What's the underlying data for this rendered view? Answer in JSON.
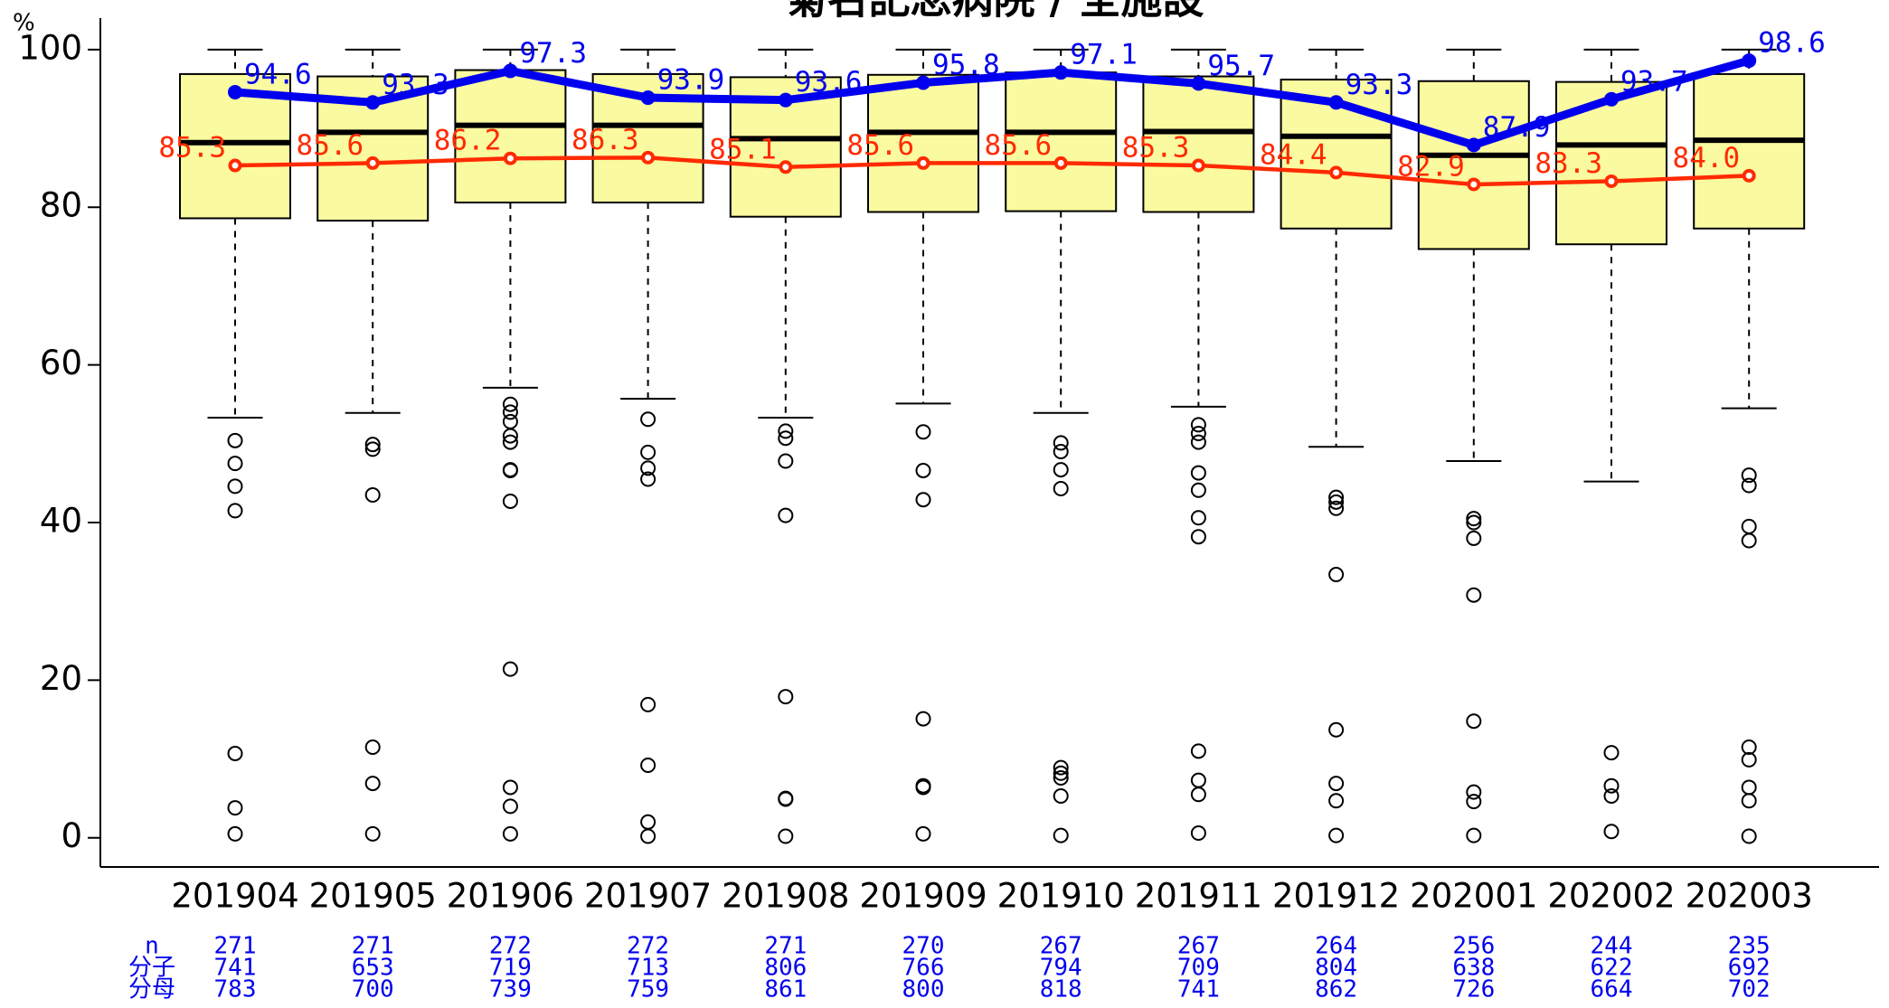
{
  "chart_data": {
    "type": "box",
    "title": "菊名記念病院 / 全施設",
    "y_label": "%",
    "ylim": [
      -3.7,
      104
    ],
    "yticks": [
      0,
      20,
      40,
      60,
      80,
      100
    ],
    "box_color": "#fafaa0",
    "categories": [
      "201904",
      "201905",
      "201906",
      "201907",
      "201908",
      "201909",
      "201910",
      "201911",
      "201912",
      "202001",
      "202002",
      "202003"
    ],
    "boxes": [
      {
        "whisker_high": 100,
        "q3": 96.9,
        "median": 88.2,
        "q1": 78.6,
        "whisker_low": 53.3,
        "outliers": [
          50.4,
          47.5,
          44.6,
          41.5,
          10.7,
          3.8,
          0.5
        ]
      },
      {
        "whisker_high": 100,
        "q3": 96.6,
        "median": 89.5,
        "q1": 78.3,
        "whisker_low": 53.9,
        "outliers": [
          49.9,
          49.3,
          43.5,
          11.5,
          6.9,
          0.5
        ]
      },
      {
        "whisker_high": 100,
        "q3": 97.4,
        "median": 90.4,
        "q1": 80.6,
        "whisker_low": 57.1,
        "outliers": [
          55.0,
          54.0,
          52.8,
          51.0,
          50.2,
          46.7,
          46.6,
          42.7,
          21.4,
          6.4,
          4.0,
          0.5
        ]
      },
      {
        "whisker_high": 100,
        "q3": 96.9,
        "median": 90.4,
        "q1": 80.6,
        "whisker_low": 55.7,
        "outliers": [
          53.1,
          48.9,
          46.9,
          45.5,
          16.9,
          9.2,
          2.0,
          0.2
        ]
      },
      {
        "whisker_high": 100,
        "q3": 96.5,
        "median": 88.7,
        "q1": 78.8,
        "whisker_low": 53.3,
        "outliers": [
          51.6,
          50.7,
          47.8,
          40.9,
          17.9,
          5.0,
          4.9,
          0.2
        ]
      },
      {
        "whisker_high": 100,
        "q3": 96.8,
        "median": 89.5,
        "q1": 79.4,
        "whisker_low": 55.1,
        "outliers": [
          51.5,
          46.6,
          42.9,
          15.1,
          6.6,
          6.4,
          0.5
        ]
      },
      {
        "whisker_high": 100,
        "q3": 97.1,
        "median": 89.5,
        "q1": 79.5,
        "whisker_low": 53.9,
        "outliers": [
          50.1,
          49.0,
          46.7,
          44.3,
          8.9,
          8.2,
          7.6,
          5.3,
          0.3
        ]
      },
      {
        "whisker_high": 100,
        "q3": 96.6,
        "median": 89.6,
        "q1": 79.4,
        "whisker_low": 54.7,
        "outliers": [
          52.4,
          51.3,
          50.2,
          46.3,
          44.1,
          40.6,
          38.2,
          11.0,
          7.3,
          5.5,
          0.6
        ]
      },
      {
        "whisker_high": 100,
        "q3": 96.2,
        "median": 89.0,
        "q1": 77.3,
        "whisker_low": 49.6,
        "outliers": [
          43.2,
          42.6,
          41.8,
          33.4,
          13.7,
          6.9,
          4.7,
          0.3
        ]
      },
      {
        "whisker_high": 100,
        "q3": 96.0,
        "median": 86.6,
        "q1": 74.7,
        "whisker_low": 47.8,
        "outliers": [
          40.5,
          40.0,
          38.0,
          30.8,
          14.8,
          5.8,
          4.6,
          0.3
        ]
      },
      {
        "whisker_high": 100,
        "q3": 95.9,
        "median": 87.9,
        "q1": 75.3,
        "whisker_low": 45.2,
        "outliers": [
          10.8,
          6.6,
          5.3,
          0.8
        ]
      },
      {
        "whisker_high": 100,
        "q3": 96.9,
        "median": 88.5,
        "q1": 77.3,
        "whisker_low": 54.5,
        "outliers": [
          46.0,
          44.7,
          39.5,
          37.7,
          11.5,
          9.9,
          6.4,
          4.7,
          0.2
        ]
      }
    ],
    "series": [
      {
        "color": "#0000ee",
        "values": [
          94.6,
          93.3,
          97.3,
          93.9,
          93.6,
          95.8,
          97.1,
          95.7,
          93.3,
          87.9,
          93.7,
          98.6
        ],
        "value_labels": [
          "94.6",
          "93.3",
          "97.3",
          "93.9",
          "93.6",
          "95.8",
          "97.1",
          "95.7",
          "93.3",
          "87.9",
          "93.7",
          "98.6"
        ]
      },
      {
        "color": "#ff2a00",
        "values": [
          85.3,
          85.6,
          86.2,
          86.3,
          85.1,
          85.6,
          85.6,
          85.3,
          84.4,
          82.9,
          83.3,
          84.0
        ],
        "value_labels": [
          "85.3",
          "85.6",
          "86.2",
          "86.3",
          "85.1",
          "85.6",
          "85.6",
          "85.3",
          "84.4",
          "82.9",
          "83.3",
          "84.0"
        ]
      }
    ],
    "table": {
      "row_labels": [
        "n",
        "分子",
        "分母"
      ],
      "rows": [
        [
          271,
          271,
          272,
          272,
          271,
          270,
          267,
          267,
          264,
          256,
          244,
          235
        ],
        [
          741,
          653,
          719,
          713,
          806,
          766,
          794,
          709,
          804,
          638,
          622,
          692
        ],
        [
          783,
          700,
          739,
          759,
          861,
          800,
          818,
          741,
          862,
          726,
          664,
          702
        ]
      ]
    }
  }
}
